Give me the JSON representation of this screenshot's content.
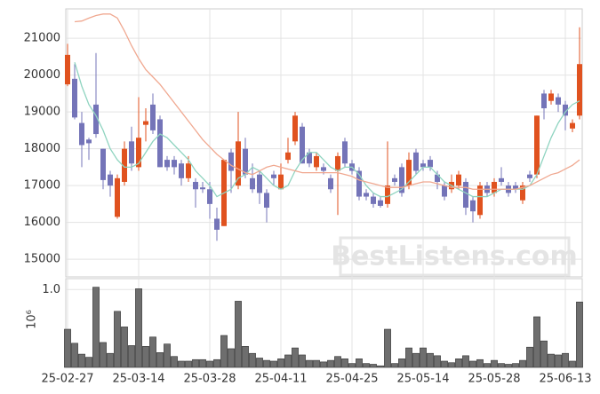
{
  "chart_data": {
    "type": "candlestick",
    "categories": [
      "25-02-27",
      null,
      null,
      null,
      null,
      null,
      null,
      null,
      null,
      null,
      "25-03-14",
      null,
      null,
      null,
      null,
      null,
      null,
      null,
      null,
      null,
      "25-03-28",
      null,
      null,
      null,
      null,
      null,
      null,
      null,
      null,
      null,
      "25-04-11",
      null,
      null,
      null,
      null,
      null,
      null,
      null,
      null,
      null,
      "25-04-25",
      null,
      null,
      null,
      null,
      null,
      null,
      null,
      null,
      null,
      "25-05-14",
      null,
      null,
      null,
      null,
      null,
      null,
      null,
      null,
      null,
      "25-05-28",
      null,
      null,
      null,
      null,
      null,
      null,
      null,
      null,
      null,
      "25-06-13",
      null,
      null
    ],
    "open": [
      19750,
      19900,
      18700,
      18250,
      19200,
      18000,
      17300,
      16150,
      17100,
      18200,
      17500,
      18650,
      19200,
      18800,
      17700,
      17700,
      17600,
      17200,
      17100,
      16950,
      16900,
      16100,
      15900,
      17900,
      17000,
      18000,
      17200,
      17300,
      16800,
      17300,
      16900,
      17700,
      18200,
      18600,
      17900,
      17500,
      17500,
      17200,
      17400,
      18200,
      17600,
      17400,
      16800,
      16700,
      16600,
      16500,
      17200,
      17500,
      17000,
      17900,
      17600,
      17700,
      17300,
      17000,
      16900,
      17000,
      17100,
      16600,
      16200,
      17000,
      16800,
      17200,
      17000,
      17000,
      16600,
      17300,
      17300,
      19500,
      19300,
      19400,
      19200,
      18550,
      18900
    ],
    "high": [
      20850,
      20300,
      19000,
      18300,
      20600,
      18000,
      17400,
      17300,
      18200,
      18600,
      19400,
      19100,
      19500,
      18900,
      17800,
      17800,
      17700,
      17800,
      17200,
      17100,
      17100,
      16400,
      17700,
      18000,
      19000,
      18300,
      17600,
      17400,
      16900,
      17400,
      17600,
      18300,
      19000,
      18700,
      18000,
      17900,
      17600,
      17300,
      17900,
      18300,
      17700,
      17500,
      16900,
      16800,
      16700,
      18200,
      17300,
      17600,
      17900,
      18000,
      17700,
      17800,
      17400,
      17100,
      17300,
      17400,
      17200,
      16700,
      17100,
      17100,
      17200,
      17500,
      17100,
      17100,
      17100,
      17400,
      18900,
      19600,
      19600,
      19500,
      19300,
      18800,
      21300
    ],
    "low": [
      19700,
      18800,
      17500,
      17700,
      18300,
      16900,
      16700,
      16100,
      17000,
      17400,
      17400,
      18200,
      18400,
      17500,
      17400,
      17300,
      17000,
      17100,
      16400,
      16800,
      16100,
      15500,
      15900,
      16800,
      16900,
      17200,
      16800,
      16500,
      16000,
      17000,
      16900,
      17600,
      18100,
      17600,
      17500,
      17400,
      17300,
      16800,
      16200,
      17500,
      17300,
      16600,
      16600,
      16400,
      16400,
      16400,
      17000,
      16700,
      16900,
      17300,
      17400,
      17400,
      16900,
      16600,
      16800,
      16900,
      16200,
      16000,
      16100,
      16700,
      16700,
      17000,
      16700,
      16800,
      16500,
      17100,
      17200,
      18800,
      19200,
      19000,
      18500,
      18450,
      18800
    ],
    "close": [
      20550,
      18850,
      18100,
      18150,
      18400,
      17150,
      17000,
      17200,
      18000,
      17600,
      18300,
      18750,
      18500,
      17500,
      17500,
      17500,
      17200,
      17600,
      16900,
      16900,
      16500,
      15800,
      17700,
      17400,
      18200,
      17300,
      16900,
      16800,
      16400,
      17200,
      17300,
      17900,
      18900,
      17600,
      17600,
      17800,
      17400,
      16900,
      17800,
      17600,
      17400,
      16700,
      16700,
      16500,
      16450,
      17000,
      17100,
      16800,
      17700,
      17400,
      17500,
      17500,
      17100,
      16700,
      17100,
      17300,
      16400,
      16300,
      17000,
      16800,
      17100,
      17100,
      16800,
      16900,
      17000,
      17200,
      18900,
      19100,
      19500,
      19200,
      18900,
      18700,
      20300
    ],
    "up_color": "#e0521f",
    "down_color": "#7474b8",
    "lines": [
      {
        "color": "#8fd4c0",
        "values": [
          null,
          20350,
          19700,
          19200,
          18900,
          18500,
          18000,
          17700,
          17500,
          17500,
          17600,
          17900,
          18200,
          18400,
          18300,
          18100,
          17900,
          17700,
          17400,
          17200,
          17000,
          16700,
          16800,
          16900,
          17200,
          17300,
          17500,
          17400,
          17200,
          17000,
          16900,
          17000,
          17400,
          17700,
          17900,
          17900,
          17700,
          17500,
          17400,
          17500,
          17500,
          17300,
          17000,
          16800,
          16700,
          16700,
          16800,
          16900,
          17100,
          17300,
          17500,
          17500,
          17300,
          17100,
          17000,
          16900,
          16800,
          16700,
          16700,
          16700,
          16800,
          16900,
          16900,
          16900,
          16900,
          17000,
          17300,
          17800,
          18300,
          18700,
          19000,
          19200,
          19300
        ]
      },
      {
        "color": "#f0a890",
        "values": [
          null,
          21450,
          21470,
          21550,
          21620,
          21660,
          21660,
          21550,
          21200,
          20800,
          20450,
          20150,
          19950,
          19750,
          19500,
          19250,
          19000,
          18750,
          18500,
          18250,
          18050,
          17850,
          17700,
          17550,
          17450,
          17350,
          17300,
          17400,
          17500,
          17550,
          17500,
          17450,
          17400,
          17350,
          17350,
          17350,
          17350,
          17350,
          17350,
          17300,
          17250,
          17150,
          17100,
          17050,
          17000,
          16950,
          16950,
          16950,
          17000,
          17050,
          17100,
          17100,
          17050,
          17000,
          16950,
          16950,
          16950,
          16900,
          16900,
          16900,
          16900,
          16900,
          16900,
          16900,
          16950,
          17000,
          17100,
          17200,
          17300,
          17350,
          17450,
          17550,
          17700
        ]
      }
    ],
    "ylim": [
      14520,
      21800
    ],
    "yticks": [
      15000,
      16000,
      17000,
      18000,
      19000,
      20000,
      21000
    ],
    "grid": true,
    "watermark": "BestListens.com",
    "volume": {
      "color": "#6e6e6e",
      "ylabel": "10⁶",
      "ylim": [
        0,
        1.14
      ],
      "yticks": [
        {
          "value": 1,
          "label": "1.0"
        }
      ],
      "values": [
        0.49,
        0.31,
        0.17,
        0.13,
        1.03,
        0.32,
        0.18,
        0.72,
        0.52,
        0.28,
        1.01,
        0.27,
        0.39,
        0.19,
        0.3,
        0.14,
        0.08,
        0.08,
        0.1,
        0.1,
        0.08,
        0.1,
        0.41,
        0.24,
        0.85,
        0.27,
        0.18,
        0.12,
        0.09,
        0.08,
        0.11,
        0.16,
        0.25,
        0.16,
        0.09,
        0.09,
        0.07,
        0.09,
        0.14,
        0.11,
        0.05,
        0.11,
        0.05,
        0.04,
        0.02,
        0.49,
        0.05,
        0.11,
        0.25,
        0.18,
        0.25,
        0.18,
        0.15,
        0.08,
        0.06,
        0.11,
        0.15,
        0.08,
        0.1,
        0.05,
        0.09,
        0.05,
        0.04,
        0.05,
        0.09,
        0.26,
        0.65,
        0.34,
        0.17,
        0.16,
        0.18,
        0.08,
        0.84
      ]
    }
  }
}
